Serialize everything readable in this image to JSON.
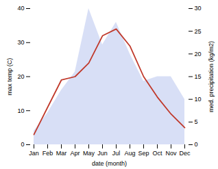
{
  "chart_data": {
    "type": "line",
    "xlabel": "date (month)",
    "ylabel": "max temp (C)",
    "y2label": "med. precipitation (kg/m2)",
    "categories": [
      "Jan",
      "Feb",
      "Mar",
      "Apr",
      "May",
      "Jun",
      "Jul",
      "Aug",
      "Sep",
      "Oct",
      "Nov",
      "Dec"
    ],
    "series": [
      {
        "type": "area",
        "axis": "y2",
        "color": "#b8c4ee",
        "values": [
          3,
          7,
          12,
          16,
          30,
          22,
          27,
          20,
          14,
          15,
          15,
          10
        ]
      },
      {
        "type": "line",
        "color": "#c0392b",
        "values": [
          3,
          11,
          19,
          20,
          24,
          32,
          34,
          29,
          20,
          14,
          9,
          5
        ]
      }
    ],
    "ylim": [
      0,
      40
    ],
    "yticks": [
      0,
      10,
      20,
      30,
      40
    ],
    "y2lim": [
      0,
      30
    ],
    "y2ticks": [
      0,
      5,
      10,
      15,
      20,
      25,
      30
    ],
    "grid": false
  }
}
